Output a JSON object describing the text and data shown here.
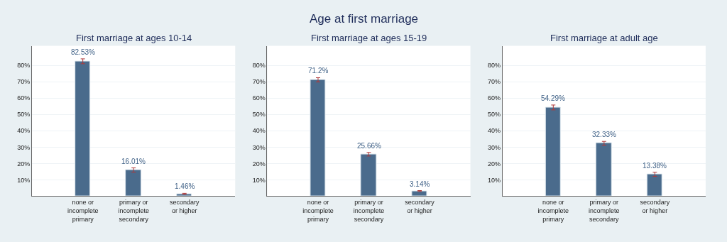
{
  "chart_data": [
    {
      "type": "bar",
      "title": "First marriage at ages 10-14",
      "annotations": [
        "Age at first marriage"
      ],
      "categories": [
        "none or\nincomplete\nprimary",
        "primary or\nincomplete\nsecondary",
        "secondary\nor higher"
      ],
      "values": [
        82.53,
        16.01,
        1.46
      ],
      "value_labels": [
        "82.53%",
        "16.01%",
        "1.46%"
      ],
      "errors": [
        1.5,
        1.3,
        0.3
      ],
      "color": "#4a6b8c",
      "ylim": [
        0,
        92
      ],
      "yticks": [
        {
          "value": 10,
          "label": "10%"
        },
        {
          "value": 20,
          "label": "20%"
        },
        {
          "value": 30,
          "label": "30%"
        },
        {
          "value": 40,
          "label": "40%"
        },
        {
          "value": 50,
          "label": "50%"
        },
        {
          "value": 60,
          "label": "60%"
        },
        {
          "value": 70,
          "label": "70%"
        },
        {
          "value": 80,
          "label": "80%"
        }
      ],
      "grid": "y"
    },
    {
      "type": "bar",
      "title": "First marriage at ages 15-19",
      "categories": [
        "none or\nincomplete\nprimary",
        "primary or\nincomplete\nsecondary",
        "secondary\nor higher"
      ],
      "values": [
        71.2,
        25.66,
        3.14
      ],
      "value_labels": [
        "71.2%",
        "25.66%",
        "3.14%"
      ],
      "errors": [
        1.3,
        1.1,
        0.3
      ],
      "color": "#4a6b8c",
      "ylim": [
        0,
        92
      ],
      "yticks": [
        {
          "value": 10,
          "label": "10%"
        },
        {
          "value": 20,
          "label": "20%"
        },
        {
          "value": 30,
          "label": "30%"
        },
        {
          "value": 40,
          "label": "40%"
        },
        {
          "value": 50,
          "label": "50%"
        },
        {
          "value": 60,
          "label": "60%"
        },
        {
          "value": 70,
          "label": "70%"
        },
        {
          "value": 80,
          "label": "80%"
        }
      ],
      "grid": "y"
    },
    {
      "type": "bar",
      "title": "First marriage at adult age",
      "categories": [
        "none or\nincomplete\nprimary",
        "primary or\nincomplete\nsecondary",
        "secondary\nor higher"
      ],
      "values": [
        54.29,
        32.33,
        13.38
      ],
      "value_labels": [
        "54.29%",
        "32.33%",
        "13.38%"
      ],
      "errors": [
        1.5,
        1.2,
        1.3
      ],
      "color": "#4a6b8c",
      "ylim": [
        0,
        92
      ],
      "yticks": [
        {
          "value": 10,
          "label": "10%"
        },
        {
          "value": 20,
          "label": "20%"
        },
        {
          "value": 30,
          "label": "30%"
        },
        {
          "value": 40,
          "label": "40%"
        },
        {
          "value": 50,
          "label": "50%"
        },
        {
          "value": 60,
          "label": "60%"
        },
        {
          "value": 70,
          "label": "70%"
        },
        {
          "value": 80,
          "label": "80%"
        }
      ],
      "grid": "y"
    }
  ]
}
